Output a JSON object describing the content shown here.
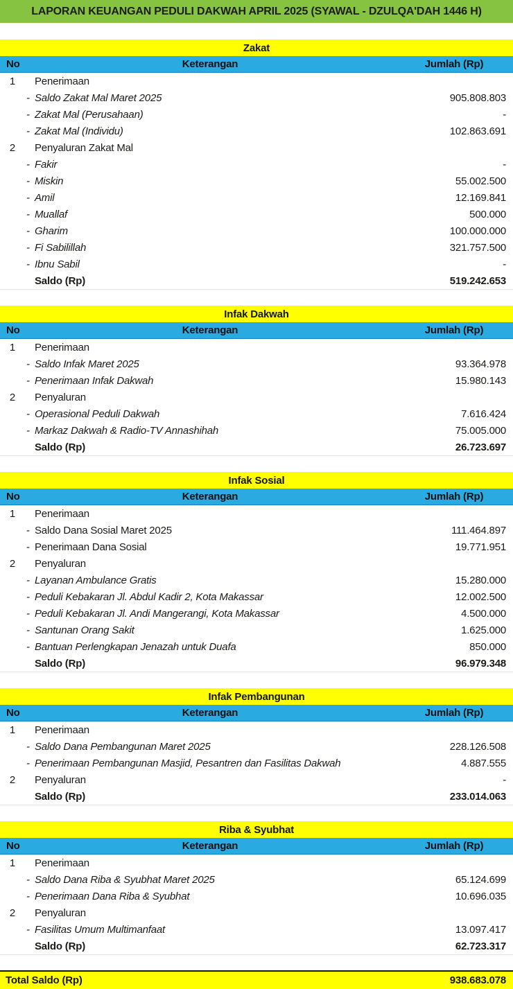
{
  "header": {
    "title": "LAPORAN KEUANGAN PEDULI DAKWAH APRIL 2025 (SYAWAL - DZULQA'DAH 1446 H)"
  },
  "columns": {
    "no": "No",
    "keterangan": "Keterangan",
    "jumlah": "Jumlah (Rp)"
  },
  "colors": {
    "header_green": "#85C340",
    "section_yellow": "#FFFF00",
    "table_header_blue": "#29ABE2"
  },
  "sections": [
    {
      "title": "Zakat",
      "rows": [
        {
          "no": "1",
          "label": "Penerimaan",
          "amount": "",
          "style": "main"
        },
        {
          "no": "",
          "label": "Saldo Zakat Mal Maret 2025",
          "amount": "905.808.803",
          "style": "subi"
        },
        {
          "no": "",
          "label": "Zakat Mal (Perusahaan)",
          "amount": "-",
          "style": "subi"
        },
        {
          "no": "",
          "label": "Zakat Mal (Individu)",
          "amount": "102.863.691",
          "style": "subi"
        },
        {
          "no": "2",
          "label": "Penyaluran Zakat Mal",
          "amount": "",
          "style": "main"
        },
        {
          "no": "",
          "label": "Fakir",
          "amount": "-",
          "style": "subi"
        },
        {
          "no": "",
          "label": "Miskin",
          "amount": "55.002.500",
          "style": "subi"
        },
        {
          "no": "",
          "label": "Amil",
          "amount": "12.169.841",
          "style": "subi"
        },
        {
          "no": "",
          "label": "Muallaf",
          "amount": "500.000",
          "style": "subi"
        },
        {
          "no": "",
          "label": "Gharim",
          "amount": "100.000.000",
          "style": "subi"
        },
        {
          "no": "",
          "label": "Fi Sabilillah",
          "amount": "321.757.500",
          "style": "subi"
        },
        {
          "no": "",
          "label": "Ibnu Sabil",
          "amount": "-",
          "style": "subi"
        },
        {
          "no": "",
          "label": "Saldo (Rp)",
          "amount": "519.242.653",
          "style": "saldo"
        }
      ]
    },
    {
      "title": "Infak Dakwah",
      "rows": [
        {
          "no": "1",
          "label": "Penerimaan",
          "amount": "",
          "style": "main"
        },
        {
          "no": "",
          "label": "Saldo Infak Maret 2025",
          "amount": "93.364.978",
          "style": "subi"
        },
        {
          "no": "",
          "label": "Penerimaan Infak Dakwah",
          "amount": "15.980.143",
          "style": "subi"
        },
        {
          "no": "2",
          "label": "Penyaluran",
          "amount": "",
          "style": "main"
        },
        {
          "no": "",
          "label": "Operasional Peduli Dakwah",
          "amount": "7.616.424",
          "style": "subi"
        },
        {
          "no": "",
          "label": "Markaz Dakwah & Radio-TV Annashihah",
          "amount": "75.005.000",
          "style": "subi"
        },
        {
          "no": "",
          "label": "Saldo (Rp)",
          "amount": "26.723.697",
          "style": "saldo"
        }
      ]
    },
    {
      "title": "Infak Sosial",
      "rows": [
        {
          "no": "1",
          "label": "Penerimaan",
          "amount": "",
          "style": "main"
        },
        {
          "no": "",
          "label": "Saldo Dana Sosial Maret 2025",
          "amount": "111.464.897",
          "style": "sub"
        },
        {
          "no": "",
          "label": "Penerimaan Dana Sosial",
          "amount": "19.771.951",
          "style": "sub"
        },
        {
          "no": "2",
          "label": "Penyaluran",
          "amount": "",
          "style": "main"
        },
        {
          "no": "",
          "label": "Layanan Ambulance Gratis",
          "amount": "15.280.000",
          "style": "subi"
        },
        {
          "no": "",
          "label": "Peduli Kebakaran Jl. Abdul Kadir 2, Kota Makassar",
          "amount": "12.002.500",
          "style": "subi"
        },
        {
          "no": "",
          "label": "Peduli Kebakaran Jl. Andi Mangerangi, Kota Makassar",
          "amount": "4.500.000",
          "style": "subi"
        },
        {
          "no": "",
          "label": "Santunan Orang Sakit",
          "amount": "1.625.000",
          "style": "subi"
        },
        {
          "no": "",
          "label": "Bantuan Perlengkapan Jenazah untuk Duafa",
          "amount": "850.000",
          "style": "subi"
        },
        {
          "no": "",
          "label": "Saldo (Rp)",
          "amount": "96.979.348",
          "style": "saldo"
        }
      ]
    },
    {
      "title": "Infak Pembangunan",
      "rows": [
        {
          "no": "1",
          "label": "Penerimaan",
          "amount": "",
          "style": "main"
        },
        {
          "no": "",
          "label": "Saldo Dana Pembangunan Maret 2025",
          "amount": "228.126.508",
          "style": "subi"
        },
        {
          "no": "",
          "label": "Penerimaan Pembangunan Masjid, Pesantren dan Fasilitas Dakwah",
          "amount": "4.887.555",
          "style": "subi"
        },
        {
          "no": "2",
          "label": "Penyaluran",
          "amount": "-",
          "style": "main"
        },
        {
          "no": "",
          "label": "Saldo (Rp)",
          "amount": "233.014.063",
          "style": "saldo"
        }
      ]
    },
    {
      "title": "Riba & Syubhat",
      "rows": [
        {
          "no": "1",
          "label": "Penerimaan",
          "amount": "",
          "style": "main"
        },
        {
          "no": "",
          "label": "Saldo Dana Riba & Syubhat Maret 2025",
          "amount": "65.124.699",
          "style": "subi"
        },
        {
          "no": "",
          "label": "Penerimaan Dana Riba & Syubhat",
          "amount": "10.696.035",
          "style": "subi"
        },
        {
          "no": "2",
          "label": "Penyaluran",
          "amount": "",
          "style": "main"
        },
        {
          "no": "",
          "label": "Fasilitas Umum Multimanfaat",
          "amount": "13.097.417",
          "style": "subi"
        },
        {
          "no": "",
          "label": "Saldo (Rp)",
          "amount": "62.723.317",
          "style": "saldo"
        }
      ]
    }
  ],
  "total": {
    "label": "Total Saldo (Rp)",
    "amount": "938.683.078"
  }
}
